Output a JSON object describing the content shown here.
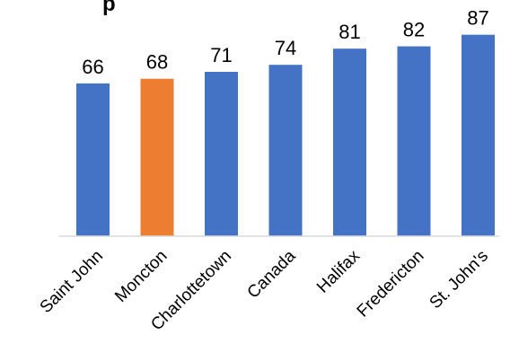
{
  "chart_data": {
    "type": "bar",
    "title": "",
    "xlabel": "",
    "ylabel": "",
    "categories": [
      "Saint John",
      "Moncton",
      "Charlottetown",
      "Canada",
      "Halifax",
      "Fredericton",
      "St. John's"
    ],
    "values": [
      66,
      68,
      71,
      74,
      81,
      82,
      87
    ],
    "ylim": [
      0,
      90
    ],
    "grid": false,
    "legend": "none",
    "data_labels": [
      "66",
      "68",
      "71",
      "74",
      "81",
      "82",
      "87"
    ],
    "highlighted_category": "Moncton",
    "colors": {
      "default_bar": "#4472C4",
      "highlight_bar": "#ED7D31",
      "axis": "#D9D9D9",
      "text": "#000000"
    }
  },
  "cropped_title_fragment": "p"
}
